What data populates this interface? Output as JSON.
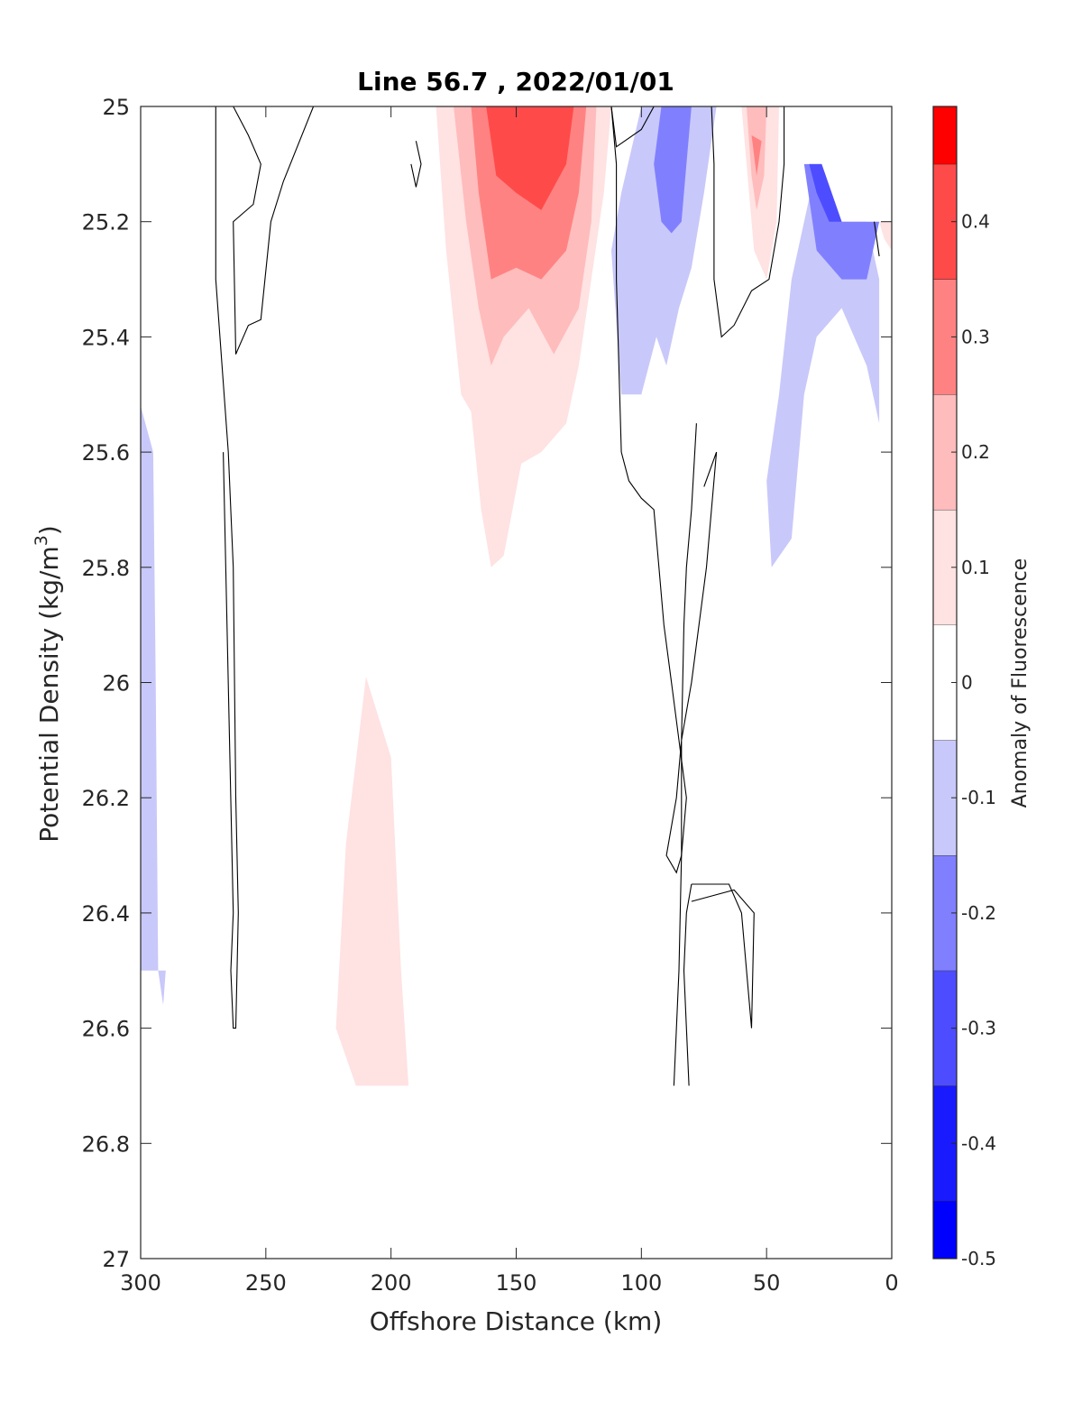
{
  "chart_data": {
    "type": "contourf",
    "title": "Line 56.7 , 2022/01/01",
    "xlabel": "Offshore Distance (km)",
    "ylabel": "Potential Density (kg/m",
    "ylabel_superscript": "3",
    "ylabel_close": ")",
    "xlim": [
      300,
      0
    ],
    "ylim": [
      25,
      27
    ],
    "x_reversed": true,
    "y_reversed": true,
    "xticks": [
      300,
      250,
      200,
      150,
      100,
      50,
      0
    ],
    "yticks": [
      25,
      25.2,
      25.4,
      25.6,
      25.8,
      26,
      26.2,
      26.4,
      26.6,
      26.8,
      27
    ],
    "xtick_labels": [
      "300",
      "250",
      "200",
      "150",
      "100",
      "50",
      "0"
    ],
    "ytick_labels": [
      "25",
      "25.2",
      "25.4",
      "25.6",
      "25.8",
      "26",
      "26.2",
      "26.4",
      "26.6",
      "26.8",
      "27"
    ],
    "colorbar": {
      "label": "Anomaly of Fluorescence",
      "range": [
        -0.5,
        0.5
      ],
      "ticks": [
        -0.5,
        -0.4,
        -0.3,
        -0.2,
        -0.1,
        0,
        0.1,
        0.2,
        0.3,
        0.4
      ],
      "tick_labels": [
        "-0.5",
        "-0.4",
        "-0.3",
        "-0.2",
        "-0.1",
        "0",
        "0.1",
        "0.2",
        "0.3",
        "0.4"
      ],
      "levels": [
        {
          "min": -0.5,
          "max": -0.45,
          "color": "#0000ff"
        },
        {
          "min": -0.45,
          "max": -0.35,
          "color": "#1a1aff"
        },
        {
          "min": -0.35,
          "max": -0.25,
          "color": "#4d4dff"
        },
        {
          "min": -0.25,
          "max": -0.15,
          "color": "#8080ff"
        },
        {
          "min": -0.15,
          "max": -0.05,
          "color": "#c8c8fa"
        },
        {
          "min": -0.05,
          "max": 0.05,
          "color": "#ffffff"
        },
        {
          "min": 0.05,
          "max": 0.15,
          "color": "#ffe2e2"
        },
        {
          "min": 0.15,
          "max": 0.25,
          "color": "#ffbcbc"
        },
        {
          "min": 0.25,
          "max": 0.35,
          "color": "#ff8282"
        },
        {
          "min": 0.35,
          "max": 0.45,
          "color": "#ff4a4a"
        },
        {
          "min": 0.45,
          "max": 0.5,
          "color": "#ff0000"
        }
      ]
    },
    "filled_regions": [
      {
        "level": 0.1,
        "points": [
          [
            182,
            25
          ],
          [
            178,
            25.25
          ],
          [
            172,
            25.5
          ],
          [
            168,
            25.53
          ],
          [
            164,
            25.7
          ],
          [
            160,
            25.8
          ],
          [
            155,
            25.78
          ],
          [
            148,
            25.62
          ],
          [
            140,
            25.6
          ],
          [
            130,
            25.55
          ],
          [
            125,
            25.45
          ],
          [
            120,
            25.3
          ],
          [
            115,
            25.15
          ],
          [
            112,
            25
          ]
        ]
      },
      {
        "level": 0.2,
        "points": [
          [
            175,
            25
          ],
          [
            170,
            25.2
          ],
          [
            165,
            25.35
          ],
          [
            160,
            25.45
          ],
          [
            155,
            25.4
          ],
          [
            145,
            25.35
          ],
          [
            135,
            25.43
          ],
          [
            125,
            25.35
          ],
          [
            120,
            25.2
          ],
          [
            118,
            25
          ]
        ]
      },
      {
        "level": 0.3,
        "points": [
          [
            168,
            25
          ],
          [
            165,
            25.15
          ],
          [
            160,
            25.3
          ],
          [
            150,
            25.28
          ],
          [
            140,
            25.3
          ],
          [
            130,
            25.25
          ],
          [
            125,
            25.15
          ],
          [
            122,
            25
          ]
        ]
      },
      {
        "level": 0.4,
        "points": [
          [
            162,
            25
          ],
          [
            158,
            25.12
          ],
          [
            150,
            25.15
          ],
          [
            140,
            25.18
          ],
          [
            130,
            25.1
          ],
          [
            127,
            25
          ]
        ]
      },
      {
        "level": 0.45,
        "points": [
          [
            155,
            25
          ],
          [
            148,
            25.05
          ],
          [
            140,
            25.07
          ],
          [
            132,
            25.04
          ],
          [
            130,
            25
          ]
        ]
      },
      {
        "level": 0.1,
        "points": [
          [
            60,
            25
          ],
          [
            58,
            25.1
          ],
          [
            55,
            25.25
          ],
          [
            50,
            25.3
          ],
          [
            46,
            25.2
          ],
          [
            45,
            25
          ]
        ]
      },
      {
        "level": 0.2,
        "points": [
          [
            58,
            25
          ],
          [
            56,
            25.12
          ],
          [
            54,
            25.18
          ],
          [
            51,
            25.12
          ],
          [
            50,
            25
          ]
        ]
      },
      {
        "level": 0.3,
        "points": [
          [
            56,
            25.05
          ],
          [
            54,
            25.12
          ],
          [
            52,
            25.06
          ]
        ]
      },
      {
        "level": 0.1,
        "points": [
          [
            5,
            25.2
          ],
          [
            0,
            25.2
          ],
          [
            0,
            25.25
          ],
          [
            3,
            25.23
          ]
        ]
      },
      {
        "level": 0.1,
        "points": [
          [
            210,
            25.99
          ],
          [
            218,
            26.28
          ],
          [
            222,
            26.6
          ],
          [
            214,
            26.7
          ],
          [
            193,
            26.7
          ],
          [
            196,
            26.5
          ],
          [
            200,
            26.13
          ]
        ]
      },
      {
        "level": -0.1,
        "points": [
          [
            100,
            25
          ],
          [
            108,
            25.15
          ],
          [
            112,
            25.25
          ],
          [
            108,
            25.5
          ],
          [
            100,
            25.5
          ],
          [
            94,
            25.4
          ],
          [
            90,
            25.45
          ],
          [
            85,
            25.35
          ],
          [
            80,
            25.28
          ],
          [
            75,
            25.15
          ],
          [
            70,
            25
          ],
          [
            92,
            25
          ]
        ]
      },
      {
        "level": -0.2,
        "points": [
          [
            92,
            25
          ],
          [
            95,
            25.1
          ],
          [
            92,
            25.2
          ],
          [
            88,
            25.22
          ],
          [
            84,
            25.2
          ],
          [
            82,
            25.1
          ],
          [
            80,
            25
          ]
        ]
      },
      {
        "level": -0.1,
        "points": [
          [
            40,
            25.3
          ],
          [
            45,
            25.5
          ],
          [
            50,
            25.65
          ],
          [
            48,
            25.8
          ],
          [
            40,
            25.75
          ],
          [
            35,
            25.5
          ],
          [
            30,
            25.4
          ],
          [
            20,
            25.35
          ],
          [
            10,
            25.45
          ],
          [
            5,
            25.55
          ],
          [
            5,
            25.3
          ],
          [
            10,
            25.2
          ],
          [
            20,
            25.2
          ],
          [
            30,
            25.1
          ]
        ]
      },
      {
        "level": -0.2,
        "points": [
          [
            35,
            25.1
          ],
          [
            30,
            25.25
          ],
          [
            20,
            25.3
          ],
          [
            10,
            25.3
          ],
          [
            5,
            25.2
          ],
          [
            20,
            25.2
          ],
          [
            28,
            25.1
          ]
        ]
      },
      {
        "level": -0.3,
        "points": [
          [
            33,
            25.1
          ],
          [
            30,
            25.15
          ],
          [
            25,
            25.2
          ],
          [
            20,
            25.2
          ],
          [
            28,
            25.1
          ]
        ]
      },
      {
        "level": -0.1,
        "points": [
          [
            300,
            25.52
          ],
          [
            295,
            25.6
          ],
          [
            294,
            26.0
          ],
          [
            293,
            26.5
          ],
          [
            291,
            26.56
          ],
          [
            290,
            26.5
          ],
          [
            300,
            26.5
          ]
        ]
      }
    ],
    "contour_lines": [
      {
        "level": 0,
        "points": [
          [
            270,
            25
          ],
          [
            270,
            25.3
          ],
          [
            265,
            25.6
          ],
          [
            263,
            25.8
          ],
          [
            262,
            26.2
          ],
          [
            261,
            26.4
          ],
          [
            262,
            26.6
          ],
          [
            263,
            26.6
          ],
          [
            264,
            26.5
          ],
          [
            263,
            26.4
          ],
          [
            267,
            25.6
          ]
        ]
      },
      {
        "level": 0,
        "points": [
          [
            263,
            25
          ],
          [
            257,
            25.05
          ],
          [
            252,
            25.1
          ],
          [
            255,
            25.17
          ],
          [
            263,
            25.2
          ],
          [
            262,
            25.43
          ],
          [
            257,
            25.38
          ],
          [
            252,
            25.37
          ],
          [
            248,
            25.2
          ],
          [
            243,
            25.13
          ],
          [
            231,
            25
          ]
        ]
      },
      {
        "level": 0,
        "points": [
          [
            190,
            25.06
          ],
          [
            188,
            25.1
          ],
          [
            190,
            25.14
          ],
          [
            192,
            25.1
          ]
        ]
      },
      {
        "level": 0,
        "points": [
          [
            112,
            25
          ],
          [
            110,
            25.1
          ],
          [
            110,
            25.3
          ],
          [
            108,
            25.6
          ],
          [
            105,
            25.65
          ],
          [
            100,
            25.68
          ],
          [
            95,
            25.7
          ],
          [
            93,
            25.8
          ],
          [
            91,
            25.9
          ],
          [
            88,
            26.0
          ],
          [
            85,
            26.1
          ],
          [
            82,
            26.2
          ],
          [
            84,
            26.3
          ],
          [
            85,
            26.5
          ],
          [
            87,
            26.7
          ]
        ]
      },
      {
        "level": 0,
        "points": [
          [
            95,
            25
          ],
          [
            100,
            25.04
          ],
          [
            110,
            25.07
          ],
          [
            112,
            25
          ]
        ]
      },
      {
        "level": 0,
        "points": [
          [
            72,
            25
          ],
          [
            71,
            25.1
          ],
          [
            71,
            25.3
          ],
          [
            68,
            25.4
          ],
          [
            63,
            25.38
          ],
          [
            56,
            25.32
          ],
          [
            49,
            25.3
          ],
          [
            45,
            25.2
          ],
          [
            43,
            25.1
          ],
          [
            43,
            25
          ]
        ]
      },
      {
        "level": 0,
        "points": [
          [
            78,
            25.55
          ],
          [
            80,
            25.7
          ],
          [
            82,
            25.8
          ],
          [
            83,
            25.9
          ],
          [
            84,
            26.1
          ],
          [
            84,
            26.3
          ],
          [
            86,
            26.33
          ],
          [
            90,
            26.3
          ],
          [
            86,
            26.2
          ],
          [
            84,
            26.1
          ],
          [
            80,
            26.0
          ],
          [
            74,
            25.8
          ],
          [
            70,
            25.6
          ],
          [
            75,
            25.66
          ]
        ]
      },
      {
        "level": 0,
        "points": [
          [
            80,
            26.35
          ],
          [
            74,
            26.35
          ],
          [
            65,
            26.35
          ],
          [
            60,
            26.4
          ],
          [
            56,
            26.6
          ],
          [
            55,
            26.4
          ],
          [
            63,
            26.36
          ],
          [
            80,
            26.38
          ]
        ]
      },
      {
        "level": 0,
        "points": [
          [
            80,
            26.35
          ],
          [
            82,
            26.4
          ],
          [
            83,
            26.5
          ],
          [
            82,
            26.6
          ],
          [
            81,
            26.7
          ]
        ]
      },
      {
        "level": 0,
        "points": [
          [
            7,
            25.2
          ],
          [
            5,
            25.26
          ]
        ]
      }
    ]
  }
}
